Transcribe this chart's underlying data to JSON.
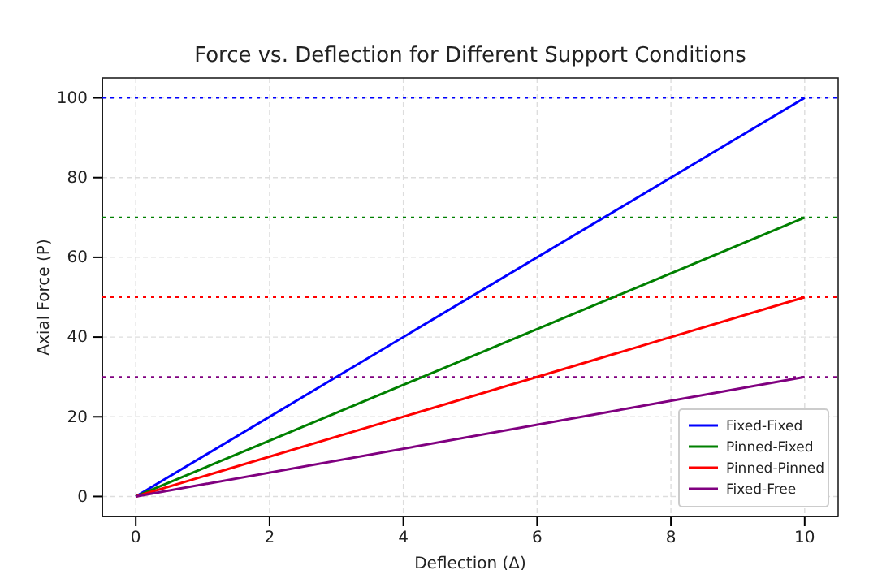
{
  "chart_data": {
    "type": "line",
    "title": "Force vs. Deflection for Different Support Conditions",
    "xlabel": "Deflection (Δ)",
    "ylabel": "Axial Force (P)",
    "x": [
      0,
      10
    ],
    "series": [
      {
        "name": "Fixed-Fixed",
        "color": "#0000ff",
        "values": [
          0,
          100
        ]
      },
      {
        "name": "Pinned-Fixed",
        "color": "#008000",
        "values": [
          0,
          70
        ]
      },
      {
        "name": "Pinned-Pinned",
        "color": "#ff0000",
        "values": [
          0,
          50
        ]
      },
      {
        "name": "Fixed-Free",
        "color": "#800080",
        "values": [
          0,
          30
        ]
      }
    ],
    "ref_lines": [
      {
        "axis": "y",
        "value": 100,
        "color": "#0000ff",
        "line_style": "dotted"
      },
      {
        "axis": "y",
        "value": 70,
        "color": "#008000",
        "line_style": "dotted"
      },
      {
        "axis": "y",
        "value": 50,
        "color": "#ff0000",
        "line_style": "dotted"
      },
      {
        "axis": "y",
        "value": 30,
        "color": "#800080",
        "line_style": "dotted"
      }
    ],
    "xlim": [
      -0.5,
      10.5
    ],
    "xticks": [
      0,
      2,
      4,
      6,
      8,
      10
    ],
    "ylim": [
      -5,
      105
    ],
    "yticks": [
      0,
      20,
      40,
      60,
      80,
      100
    ],
    "grid": true,
    "legend": "bottom right",
    "marker": "none",
    "line_style": "solid"
  }
}
